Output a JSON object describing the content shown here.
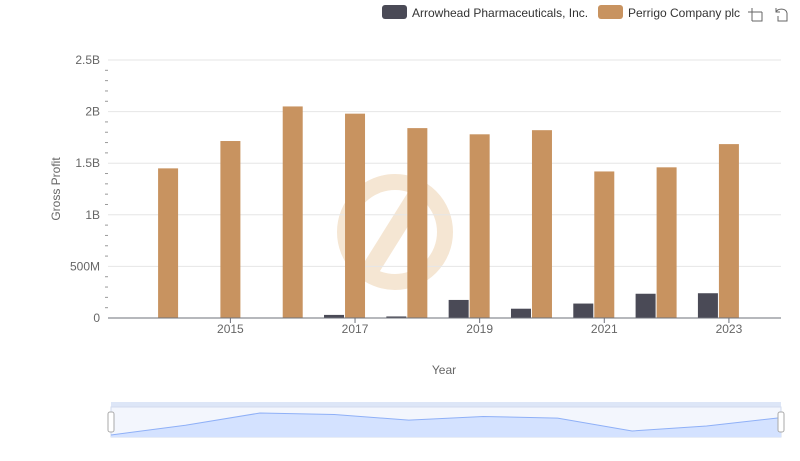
{
  "colors": {
    "arrowhead": "#4a4a56",
    "perrigo": "#c89360",
    "grid": "#e6e6e6",
    "axis": "#6e7079",
    "zoom_fill": "#d4e2ff",
    "zoom_line": "#8fb0f7",
    "zoom_border": "#d2dbee",
    "watermark": "#f5e6d3"
  },
  "toolbar": {
    "icons": [
      "zoom-box-icon",
      "zoom-reset-icon"
    ]
  },
  "chart_data": {
    "type": "bar",
    "xlabel": "Year",
    "ylabel": "Gross Profit",
    "ylim": [
      0,
      2500000000
    ],
    "yticks": [
      {
        "value": 0,
        "label": "0"
      },
      {
        "value": 500000000,
        "label": "500M"
      },
      {
        "value": 1000000000,
        "label": "1B"
      },
      {
        "value": 1500000000,
        "label": "1.5B"
      },
      {
        "value": 2000000000,
        "label": "2B"
      },
      {
        "value": 2500000000,
        "label": "2.5B"
      }
    ],
    "categories": [
      "2014",
      "2015",
      "2016",
      "2017",
      "2018",
      "2019",
      "2020",
      "2021",
      "2022",
      "2023"
    ],
    "xtick_labels": [
      "2015",
      "2017",
      "2019",
      "2021",
      "2023"
    ],
    "legend_position": "top-right",
    "grid": true,
    "series": [
      {
        "name": "Arrowhead Pharmaceuticals, Inc.",
        "color_key": "arrowhead",
        "values": [
          0,
          0,
          0,
          30000000,
          15000000,
          175000000,
          90000000,
          140000000,
          235000000,
          240000000
        ]
      },
      {
        "name": "Perrigo Company plc",
        "color_key": "perrigo",
        "values": [
          1450000000,
          1715000000,
          2050000000,
          1980000000,
          1840000000,
          1780000000,
          1820000000,
          1420000000,
          1460000000,
          1685000000
        ]
      }
    ],
    "zoom_range": [
      0,
      100
    ]
  }
}
